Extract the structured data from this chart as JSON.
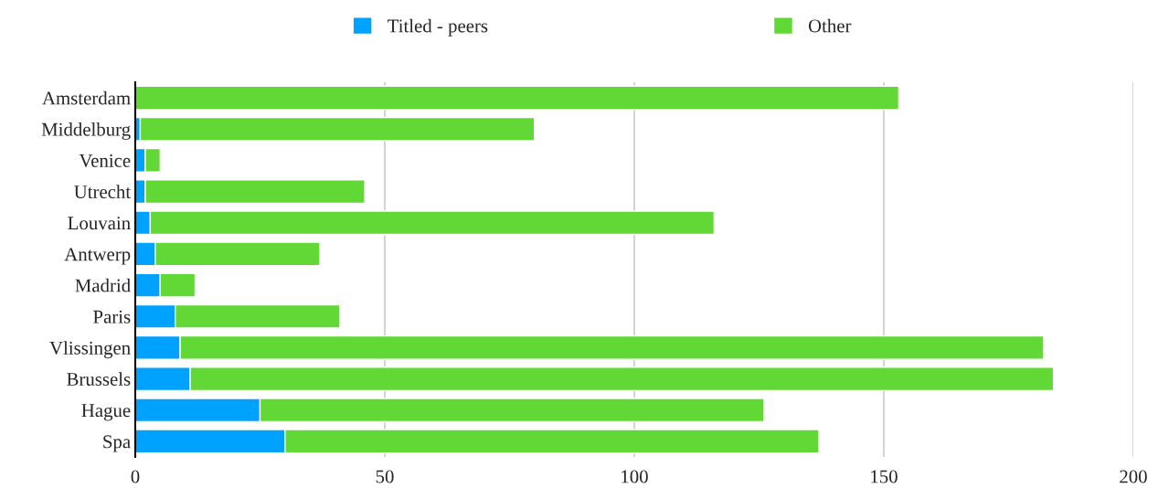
{
  "chart_data": {
    "type": "bar",
    "orientation": "horizontal",
    "stacked": true,
    "categories": [
      "Amsterdam",
      "Middelburg",
      "Venice",
      "Utrecht",
      "Louvain",
      "Antwerp",
      "Madrid",
      "Paris",
      "Vlissingen",
      "Brussels",
      "Hague",
      "Spa"
    ],
    "series": [
      {
        "name": "Titled - peers",
        "color": "#00a2ff",
        "values": [
          0,
          1,
          2,
          2,
          3,
          4,
          5,
          8,
          9,
          11,
          25,
          30
        ]
      },
      {
        "name": "Other",
        "color": "#61d836",
        "values": [
          153,
          79,
          3,
          44,
          113,
          33,
          7,
          33,
          173,
          173,
          101,
          107
        ]
      }
    ],
    "xlim": [
      0,
      200
    ],
    "xticks": [
      0,
      50,
      100,
      150,
      200
    ],
    "grid": "x",
    "legend": "top"
  }
}
